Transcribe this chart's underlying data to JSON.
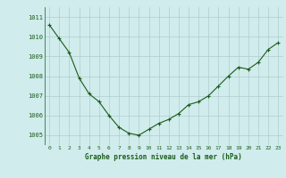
{
  "x": [
    0,
    1,
    2,
    3,
    4,
    5,
    6,
    7,
    8,
    9,
    10,
    11,
    12,
    13,
    14,
    15,
    16,
    17,
    18,
    19,
    20,
    21,
    22,
    23
  ],
  "y": [
    1010.6,
    1009.9,
    1009.2,
    1007.9,
    1007.1,
    1006.7,
    1006.0,
    1005.4,
    1005.1,
    1005.0,
    1005.3,
    1005.6,
    1005.8,
    1006.1,
    1006.55,
    1006.7,
    1007.0,
    1007.5,
    1008.0,
    1008.45,
    1008.35,
    1008.7,
    1009.35,
    1009.7
  ],
  "ylim": [
    1004.5,
    1011.5
  ],
  "yticks": [
    1005,
    1006,
    1007,
    1008,
    1009,
    1010,
    1011
  ],
  "xticks": [
    0,
    1,
    2,
    3,
    4,
    5,
    6,
    7,
    8,
    9,
    10,
    11,
    12,
    13,
    14,
    15,
    16,
    17,
    18,
    19,
    20,
    21,
    22,
    23
  ],
  "xlabel": "Graphe pression niveau de la mer (hPa)",
  "line_color": "#1a5c1a",
  "marker": "+",
  "bg_color": "#d0ecec",
  "grid_color": "#b0cccc",
  "xlabel_color": "#1a5c1a",
  "tick_color": "#1a5c1a",
  "figsize": [
    3.2,
    2.0
  ],
  "dpi": 100
}
